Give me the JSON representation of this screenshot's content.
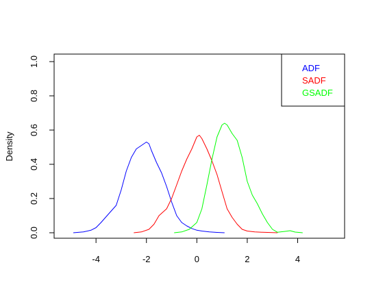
{
  "chart_data": {
    "type": "line",
    "title": "",
    "xlabel": "",
    "ylabel": "Density",
    "xlim": [
      -5.2,
      5.4
    ],
    "ylim": [
      0,
      1.0
    ],
    "x_ticks": [
      -4,
      -2,
      0,
      2,
      4
    ],
    "x_tick_labels": [
      "-4",
      "-2",
      "0",
      "2",
      "4"
    ],
    "y_ticks": [
      0.0,
      0.2,
      0.4,
      0.6,
      0.8,
      1.0
    ],
    "y_tick_labels": [
      "0.0",
      "0.2",
      "0.4",
      "0.6",
      "0.8",
      "1.0"
    ],
    "grid": false,
    "legend_position": "top-right",
    "series": [
      {
        "name": "ADF",
        "color": "#0000ff",
        "x": [
          -4.9,
          -4.5,
          -4.2,
          -4.0,
          -3.8,
          -3.5,
          -3.2,
          -3.0,
          -2.8,
          -2.6,
          -2.4,
          -2.2,
          -2.0,
          -1.9,
          -1.8,
          -1.6,
          -1.4,
          -1.2,
          -1.0,
          -0.8,
          -0.6,
          -0.4,
          -0.2,
          0.0,
          0.2,
          0.5,
          0.8,
          1.1
        ],
        "y": [
          0.0,
          0.005,
          0.015,
          0.03,
          0.06,
          0.11,
          0.16,
          0.25,
          0.36,
          0.44,
          0.49,
          0.51,
          0.53,
          0.52,
          0.48,
          0.41,
          0.35,
          0.27,
          0.18,
          0.1,
          0.06,
          0.04,
          0.025,
          0.015,
          0.01,
          0.005,
          0.002,
          0.0
        ]
      },
      {
        "name": "SADF",
        "color": "#ff0000",
        "x": [
          -2.5,
          -2.2,
          -1.9,
          -1.7,
          -1.5,
          -1.2,
          -1.0,
          -0.8,
          -0.6,
          -0.4,
          -0.2,
          0.0,
          0.1,
          0.2,
          0.4,
          0.6,
          0.8,
          1.0,
          1.2,
          1.4,
          1.6,
          1.8,
          2.0,
          2.3,
          2.6,
          3.0,
          3.2
        ],
        "y": [
          0.0,
          0.005,
          0.02,
          0.05,
          0.1,
          0.14,
          0.2,
          0.28,
          0.36,
          0.43,
          0.49,
          0.56,
          0.57,
          0.55,
          0.49,
          0.42,
          0.34,
          0.24,
          0.14,
          0.09,
          0.05,
          0.02,
          0.01,
          0.005,
          0.003,
          0.001,
          0.0
        ]
      },
      {
        "name": "GSADF",
        "color": "#00ff00",
        "x": [
          -0.9,
          -0.6,
          -0.3,
          0.0,
          0.2,
          0.4,
          0.6,
          0.8,
          1.0,
          1.1,
          1.2,
          1.4,
          1.6,
          1.8,
          2.0,
          2.2,
          2.4,
          2.6,
          2.8,
          3.0,
          3.2,
          3.5,
          3.7,
          3.9,
          4.2
        ],
        "y": [
          0.0,
          0.005,
          0.02,
          0.06,
          0.14,
          0.28,
          0.43,
          0.56,
          0.63,
          0.64,
          0.63,
          0.58,
          0.54,
          0.44,
          0.3,
          0.22,
          0.17,
          0.11,
          0.06,
          0.02,
          0.003,
          0.008,
          0.012,
          0.004,
          0.0
        ]
      }
    ]
  }
}
